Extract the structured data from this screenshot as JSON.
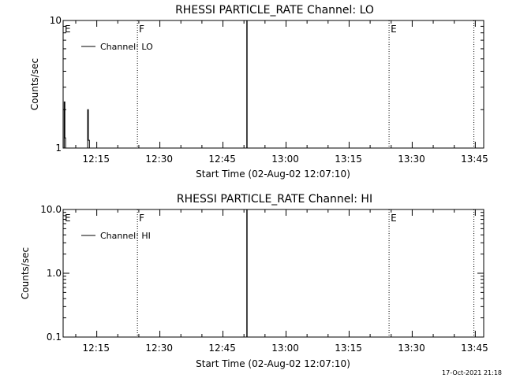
{
  "chart_data": [
    {
      "type": "line",
      "title": "RHESSI PARTICLE_RATE Channel: LO",
      "xlabel": "Start Time (02-Aug-02 12:07:10)",
      "ylabel": "Counts/sec",
      "y_scale": "log",
      "ylim": [
        1,
        10
      ],
      "xlim": [
        "12:07:10",
        "13:47:10"
      ],
      "x_ticks": [
        "12:15",
        "12:30",
        "12:45",
        "13:00",
        "13:15",
        "13:30",
        "13:45"
      ],
      "y_ticks": [
        "1",
        "10"
      ],
      "legend": {
        "placement": "top-left",
        "entries": [
          "Channel: LO"
        ]
      },
      "series": [
        {
          "name": "Channel: LO",
          "x": [
            "12:07:10",
            "12:07:25",
            "12:07:25",
            "12:07:35",
            "12:07:35",
            "12:07:45",
            "12:07:45",
            "12:13:00",
            "12:13:00",
            "12:13:10",
            "12:13:10",
            "12:13:25",
            "12:13:25",
            "12:50:50",
            "12:50:50",
            "12:50:55",
            "12:50:55"
          ],
          "y": [
            1,
            1,
            2.3,
            2.3,
            1.2,
            1.2,
            1,
            1,
            2.0,
            2.0,
            1.15,
            1.15,
            1,
            1,
            10,
            10,
            1
          ]
        }
      ],
      "annotations": [
        {
          "label": "E",
          "x": "12:07:10",
          "style": "dotted"
        },
        {
          "label": "F",
          "x": "12:24:50",
          "style": "dotted"
        },
        {
          "label": "E",
          "x": "13:24:40",
          "style": "dotted"
        },
        {
          "label": "",
          "x": "13:44:50",
          "style": "dotted"
        }
      ]
    },
    {
      "type": "line",
      "title": "RHESSI PARTICLE_RATE Channel: HI",
      "xlabel": "Start Time (02-Aug-02 12:07:10)",
      "ylabel": "Counts/sec",
      "y_scale": "log",
      "ylim": [
        0.1,
        10
      ],
      "xlim": [
        "12:07:10",
        "13:47:10"
      ],
      "x_ticks": [
        "12:15",
        "12:30",
        "12:45",
        "13:00",
        "13:15",
        "13:30",
        "13:45"
      ],
      "y_ticks": [
        "0.1",
        "1.0",
        "10.0"
      ],
      "legend": {
        "placement": "top-left",
        "entries": [
          "Channel: HI"
        ]
      },
      "series": [
        {
          "name": "Channel: HI",
          "x": [
            "12:07:10",
            "12:50:50",
            "12:50:50",
            "12:50:55",
            "12:50:55"
          ],
          "y": [
            0.1,
            0.1,
            10,
            10,
            0.1
          ]
        }
      ],
      "annotations": [
        {
          "label": "E",
          "x": "12:07:10",
          "style": "dotted"
        },
        {
          "label": "F",
          "x": "12:24:50",
          "style": "dotted"
        },
        {
          "label": "E",
          "x": "13:24:40",
          "style": "dotted"
        },
        {
          "label": "",
          "x": "13:44:50",
          "style": "dotted"
        }
      ]
    }
  ],
  "footer": {
    "timestamp": "17-Oct-2021 21:18"
  },
  "colors": {
    "background": "#ffffff",
    "foreground": "#000000"
  }
}
